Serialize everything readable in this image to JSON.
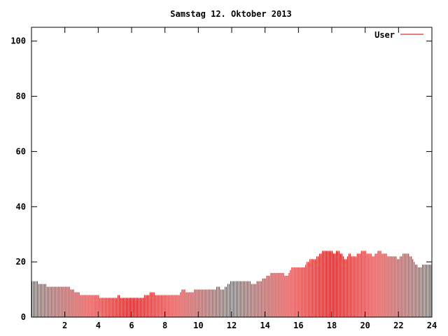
{
  "chart_data": {
    "type": "bar",
    "title": "Samstag 12. Oktober 2013",
    "xlabel": "",
    "ylabel": "",
    "xlim": [
      0,
      24
    ],
    "ylim": [
      0,
      105
    ],
    "xticks": [
      2,
      4,
      6,
      8,
      10,
      12,
      14,
      16,
      18,
      20,
      22,
      24
    ],
    "xtick_labels": [
      "2",
      "4",
      "6",
      "8",
      "10",
      "12",
      "14",
      "16",
      "18",
      "20",
      "22",
      "24"
    ],
    "yticks": [
      0,
      20,
      40,
      60,
      80,
      100
    ],
    "ytick_labels": [
      "0",
      "20",
      "40",
      "60",
      "80",
      "100"
    ],
    "grid": false,
    "legend": "top-right",
    "bar_color": "#cc0000",
    "series": [
      {
        "name": "User",
        "color": "#cc0000",
        "keypoints": [
          [
            0.0,
            13
          ],
          [
            0.8,
            12
          ],
          [
            0.9,
            11
          ],
          [
            2.2,
            11
          ],
          [
            2.4,
            10
          ],
          [
            2.7,
            9
          ],
          [
            3.0,
            8
          ],
          [
            4.0,
            8
          ],
          [
            4.1,
            7
          ],
          [
            5.0,
            7
          ],
          [
            5.2,
            8
          ],
          [
            5.4,
            7
          ],
          [
            6.0,
            7
          ],
          [
            6.6,
            7
          ],
          [
            6.9,
            8
          ],
          [
            7.2,
            9
          ],
          [
            7.5,
            8
          ],
          [
            8.8,
            8
          ],
          [
            9.0,
            10
          ],
          [
            9.4,
            9
          ],
          [
            10.0,
            10
          ],
          [
            10.9,
            10
          ],
          [
            11.2,
            11
          ],
          [
            11.4,
            10
          ],
          [
            12.0,
            13
          ],
          [
            13.0,
            13
          ],
          [
            13.3,
            12
          ],
          [
            13.9,
            14
          ],
          [
            14.4,
            16
          ],
          [
            15.0,
            16
          ],
          [
            15.3,
            15
          ],
          [
            15.6,
            18
          ],
          [
            16.3,
            18
          ],
          [
            16.5,
            20
          ],
          [
            16.7,
            21
          ],
          [
            17.0,
            21
          ],
          [
            17.3,
            23
          ],
          [
            17.5,
            24
          ],
          [
            17.9,
            24
          ],
          [
            18.1,
            23
          ],
          [
            18.4,
            24
          ],
          [
            18.8,
            21
          ],
          [
            19.0,
            23
          ],
          [
            19.3,
            22
          ],
          [
            19.6,
            23
          ],
          [
            19.8,
            24
          ],
          [
            20.2,
            23
          ],
          [
            20.5,
            22
          ],
          [
            20.8,
            24
          ],
          [
            21.1,
            23
          ],
          [
            21.4,
            22
          ],
          [
            21.7,
            22
          ],
          [
            22.0,
            21
          ],
          [
            22.3,
            23
          ],
          [
            22.6,
            23
          ],
          [
            22.9,
            20
          ],
          [
            23.2,
            18
          ],
          [
            23.5,
            19
          ],
          [
            23.8,
            19
          ],
          [
            24.0,
            19
          ]
        ]
      }
    ]
  }
}
